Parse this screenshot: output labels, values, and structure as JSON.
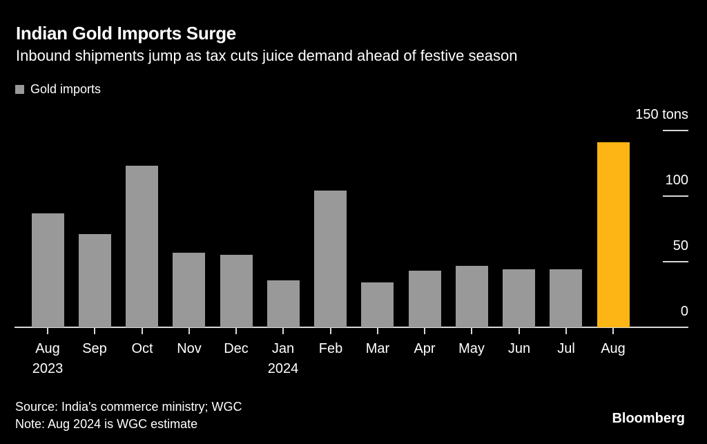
{
  "chart_data": {
    "type": "bar",
    "title": "Indian Gold Imports Surge",
    "subtitle": "Inbound shipments jump as tax cuts juice demand ahead of festive season",
    "series_name": "Gold imports",
    "legend": [
      {
        "label": "Gold imports",
        "color": "#999999"
      }
    ],
    "legend_position": "top-left",
    "unit": "tons",
    "categories": [
      "Aug",
      "Sep",
      "Oct",
      "Nov",
      "Dec",
      "Jan",
      "Feb",
      "Mar",
      "Apr",
      "May",
      "Jun",
      "Jul",
      "Aug"
    ],
    "category_sublabels": {
      "0": "2023",
      "5": "2024"
    },
    "values": [
      87,
      71,
      123,
      57,
      55,
      36,
      104,
      34,
      43,
      47,
      44,
      44,
      141
    ],
    "ylim": [
      0,
      150
    ],
    "y_axis_side": "right",
    "yticks": [
      {
        "value": 150,
        "label": "150 tons"
      },
      {
        "value": 100,
        "label": "100"
      },
      {
        "value": 50,
        "label": "50"
      },
      {
        "value": 0,
        "label": "0"
      }
    ],
    "grid": false,
    "bar_color": "#999999",
    "highlight": {
      "index": 12,
      "color": "#fcb514"
    }
  },
  "footer": {
    "source": "Source: India's commerce ministry; WGC",
    "note": "Note: Aug 2024 is WGC estimate",
    "brand": "Bloomberg"
  }
}
